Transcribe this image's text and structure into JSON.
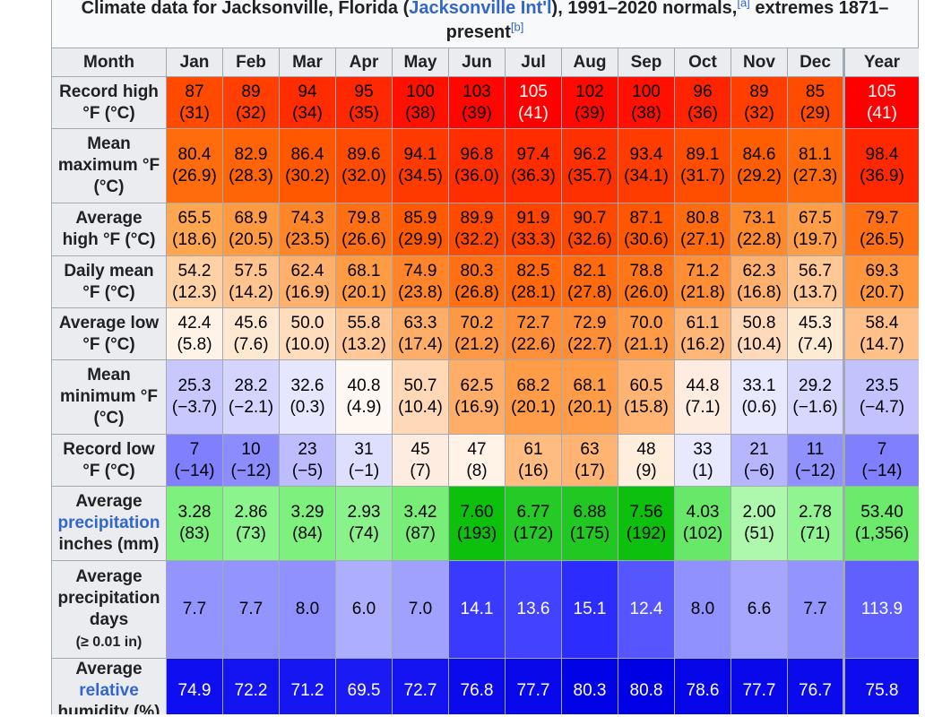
{
  "caption": {
    "prefix": "Climate data for Jacksonville, Florida (",
    "link": "Jacksonville Int'l",
    "mid": "), 1991–2020 normals,",
    "note_a": "[a]",
    "suffix": " extremes 1871–present",
    "note_b": "[b]"
  },
  "header": {
    "month_label": "Month",
    "months": [
      "Jan",
      "Feb",
      "Mar",
      "Apr",
      "May",
      "Jun",
      "Jul",
      "Aug",
      "Sep",
      "Oct",
      "Nov",
      "Dec"
    ],
    "year_label": "Year"
  },
  "rows": [
    {
      "label": [
        "Record high",
        "°F (°C)"
      ],
      "cells": [
        "87\n(31)",
        "89\n(32)",
        "94\n(34)",
        "95\n(35)",
        "100\n(38)",
        "103\n(39)",
        "105\n(41)",
        "102\n(39)",
        "100\n(38)",
        "96\n(36)",
        "89\n(32)",
        "85\n(29)"
      ],
      "year": "105\n(41)",
      "colors": [
        "#ff4a00",
        "#ff3e00",
        "#ff2c00",
        "#ff2800",
        "#ff1000",
        "#ff0600",
        "#ff0000",
        "#ff0a00",
        "#ff1000",
        "#ff2400",
        "#ff3e00",
        "#ff4c00"
      ],
      "year_color": "#ff0000",
      "text_colors": [
        "#000",
        "#000",
        "#000",
        "#000",
        "#000",
        "#000",
        "#fff",
        "#000",
        "#000",
        "#000",
        "#000",
        "#000"
      ],
      "year_text_color": "#fff"
    },
    {
      "label": [
        "Mean",
        "maximum °F",
        "(°C)"
      ],
      "cells": [
        "80.4\n(26.9)",
        "82.9\n(28.3)",
        "86.4\n(30.2)",
        "89.6\n(32.0)",
        "94.1\n(34.5)",
        "96.8\n(36.0)",
        "97.4\n(36.3)",
        "96.2\n(35.7)",
        "93.4\n(34.1)",
        "89.1\n(31.7)",
        "84.6\n(29.2)",
        "81.1\n(27.3)"
      ],
      "year": "98.4\n(36.9)",
      "colors": [
        "#ff6c0e",
        "#ff6406",
        "#ff5800",
        "#ff4c00",
        "#ff3a00",
        "#ff2e00",
        "#ff2c00",
        "#ff3000",
        "#ff3c00",
        "#ff4e00",
        "#ff5e00",
        "#ff6a0c"
      ],
      "year_color": "#ff2800",
      "text_colors": [
        "#000",
        "#000",
        "#000",
        "#000",
        "#000",
        "#000",
        "#000",
        "#000",
        "#000",
        "#000",
        "#000",
        "#000"
      ],
      "year_text_color": "#000"
    },
    {
      "label": [
        "Average",
        "high °F (°C)"
      ],
      "cells": [
        "65.5\n(18.6)",
        "68.9\n(20.5)",
        "74.3\n(23.5)",
        "79.8\n(26.6)",
        "85.9\n(29.9)",
        "89.9\n(32.2)",
        "91.9\n(33.3)",
        "90.7\n(32.6)",
        "87.1\n(30.6)",
        "80.8\n(27.1)",
        "73.1\n(22.8)",
        "67.5\n(19.7)"
      ],
      "year": "79.7\n(26.5)",
      "colors": [
        "#ffa650",
        "#ff9a40",
        "#ff8628",
        "#ff7014",
        "#ff5a00",
        "#ff4a00",
        "#ff4400",
        "#ff4800",
        "#ff5600",
        "#ff6c10",
        "#ff8a2c",
        "#ff9e46"
      ],
      "year_color": "#ff7014",
      "text_colors": [
        "#000",
        "#000",
        "#000",
        "#000",
        "#000",
        "#000",
        "#000",
        "#000",
        "#000",
        "#000",
        "#000",
        "#000"
      ],
      "year_text_color": "#000"
    },
    {
      "label": [
        "Daily mean",
        "°F (°C)"
      ],
      "cells": [
        "54.2\n(12.3)",
        "57.5\n(14.2)",
        "62.4\n(16.9)",
        "68.1\n(20.1)",
        "74.9\n(23.8)",
        "80.3\n(26.8)",
        "82.5\n(28.1)",
        "82.1\n(27.8)",
        "78.8\n(26.0)",
        "71.2\n(21.8)",
        "62.3\n(16.8)",
        "56.7\n(13.7)"
      ],
      "year": "69.3\n(20.7)",
      "colors": [
        "#ffd2a6",
        "#ffc48e",
        "#ffb06c",
        "#ff9c44",
        "#ff842a",
        "#ff7014",
        "#ff680c",
        "#ff6a0e",
        "#ff7618",
        "#ff8e34",
        "#ffb06c",
        "#ffc894"
      ],
      "year_color": "#ff963e",
      "text_colors": [
        "#000",
        "#000",
        "#000",
        "#000",
        "#000",
        "#000",
        "#000",
        "#000",
        "#000",
        "#000",
        "#000",
        "#000"
      ],
      "year_text_color": "#000"
    },
    {
      "label": [
        "Average low",
        "°F (°C)"
      ],
      "cells": [
        "42.4\n(5.8)",
        "45.6\n(7.6)",
        "50.0\n(10.0)",
        "55.8\n(13.2)",
        "63.3\n(17.4)",
        "70.2\n(21.2)",
        "72.7\n(22.6)",
        "72.9\n(22.7)",
        "70.0\n(21.1)",
        "61.1\n(16.2)",
        "50.8\n(10.4)",
        "45.3\n(7.4)"
      ],
      "year": "58.4\n(14.7)",
      "colors": [
        "#fff3e8",
        "#ffe8d2",
        "#ffdcbc",
        "#ffc896",
        "#ffae6a",
        "#ff9844",
        "#ff8e38",
        "#ff8e36",
        "#ff9a46",
        "#ffb676",
        "#ffdaba",
        "#ffead4"
      ],
      "year_color": "#ffc08a",
      "text_colors": [
        "#000",
        "#000",
        "#000",
        "#000",
        "#000",
        "#000",
        "#000",
        "#000",
        "#000",
        "#000",
        "#000",
        "#000"
      ],
      "year_text_color": "#000"
    },
    {
      "label": [
        "Mean",
        "minimum °F",
        "(°C)"
      ],
      "cells": [
        "25.3\n(−3.7)",
        "28.2\n(−2.1)",
        "32.6\n(0.3)",
        "40.8\n(4.9)",
        "50.7\n(10.4)",
        "62.5\n(16.9)",
        "68.2\n(20.1)",
        "68.1\n(20.1)",
        "60.5\n(15.8)",
        "44.8\n(7.1)",
        "33.1\n(0.6)",
        "29.2\n(−1.6)"
      ],
      "year": "23.5\n(−4.7)",
      "colors": [
        "#c8c8ff",
        "#d4d4ff",
        "#e6e6ff",
        "#fff8f2",
        "#ffd8b8",
        "#ffae6a",
        "#ff9c48",
        "#ff9c48",
        "#ffb474",
        "#ffece0",
        "#e8e8ff",
        "#d8d8ff"
      ],
      "year_color": "#c2c2ff",
      "text_colors": [
        "#000",
        "#000",
        "#000",
        "#000",
        "#000",
        "#000",
        "#000",
        "#000",
        "#000",
        "#000",
        "#000",
        "#000"
      ],
      "year_text_color": "#000"
    },
    {
      "label": [
        "Record low",
        "°F (°C)"
      ],
      "cells": [
        "7\n(−14)",
        "10\n(−12)",
        "23\n(−5)",
        "31\n(−1)",
        "45\n(7)",
        "47\n(8)",
        "61\n(16)",
        "63\n(17)",
        "48\n(9)",
        "33\n(1)",
        "21\n(−6)",
        "11\n(−12)"
      ],
      "year": "7\n(−14)",
      "colors": [
        "#8080ff",
        "#8c8cff",
        "#bcbcff",
        "#dedeff",
        "#ffece0",
        "#fff2e6",
        "#ffbc80",
        "#ffb474",
        "#ffeedc",
        "#e8e8ff",
        "#b6b6ff",
        "#9090ff"
      ],
      "year_color": "#8080ff",
      "text_colors": [
        "#000",
        "#000",
        "#000",
        "#000",
        "#000",
        "#000",
        "#000",
        "#000",
        "#000",
        "#000",
        "#000",
        "#000"
      ],
      "year_text_color": "#000"
    },
    {
      "label": [
        "Average",
        "precipitation",
        "inches (mm)"
      ],
      "label_link_index": 1,
      "cells": [
        "3.28\n(83)",
        "2.86\n(73)",
        "3.29\n(84)",
        "2.93\n(74)",
        "3.42\n(87)",
        "7.60\n(193)",
        "6.77\n(172)",
        "6.88\n(175)",
        "7.56\n(192)",
        "4.03\n(102)",
        "2.00\n(51)",
        "2.78\n(71)"
      ],
      "year": "53.40\n(1,356)",
      "colors": [
        "#7ef07e",
        "#8cf48c",
        "#7ef07e",
        "#8af28a",
        "#78ee78",
        "#0cc00c",
        "#26ca26",
        "#22c822",
        "#0ec00e",
        "#68e868",
        "#aef8ae",
        "#90f490"
      ],
      "year_color": "#6cea6c",
      "text_colors": [
        "#000",
        "#000",
        "#000",
        "#000",
        "#000",
        "#000",
        "#000",
        "#000",
        "#000",
        "#000",
        "#000",
        "#000"
      ],
      "year_text_color": "#000"
    },
    {
      "label": [
        "Average",
        "precipitation",
        "days",
        "(≥ 0.01 in)"
      ],
      "cells": [
        "7.7",
        "7.7",
        "8.0",
        "6.0",
        "7.0",
        "14.1",
        "13.6",
        "15.1",
        "12.4",
        "8.0",
        "6.6",
        "7.7"
      ],
      "year": "113.9",
      "colors": [
        "#9494ff",
        "#9494ff",
        "#9090ff",
        "#aeaeff",
        "#a0a0ff",
        "#3a3aff",
        "#4242ff",
        "#2c2cff",
        "#5656ff",
        "#9090ff",
        "#a6a6ff",
        "#9494ff"
      ],
      "year_color": "#6060ff",
      "text_colors": [
        "#000",
        "#000",
        "#000",
        "#000",
        "#000",
        "#fff",
        "#fff",
        "#fff",
        "#fff",
        "#000",
        "#000",
        "#000"
      ],
      "year_text_color": "#fff"
    },
    {
      "label": [
        "Average",
        "relative",
        "humidity (%)"
      ],
      "label_link_index": 1,
      "cells": [
        "74.9",
        "72.2",
        "71.2",
        "69.5",
        "72.7",
        "76.8",
        "77.7",
        "80.3",
        "80.8",
        "78.6",
        "77.7",
        "76.7"
      ],
      "year": "75.8",
      "colors": [
        "#0e0ef0",
        "#1414f2",
        "#1616f2",
        "#1a1af4",
        "#1414f2",
        "#0a0aec",
        "#0808ea",
        "#0202e6",
        "#0000e4",
        "#0606e8",
        "#0808ea",
        "#0a0aec"
      ],
      "year_color": "#0c0cee",
      "text_colors": [
        "#fff",
        "#fff",
        "#fff",
        "#fff",
        "#fff",
        "#fff",
        "#fff",
        "#fff",
        "#fff",
        "#fff",
        "#fff",
        "#fff"
      ],
      "year_text_color": "#fff"
    }
  ]
}
